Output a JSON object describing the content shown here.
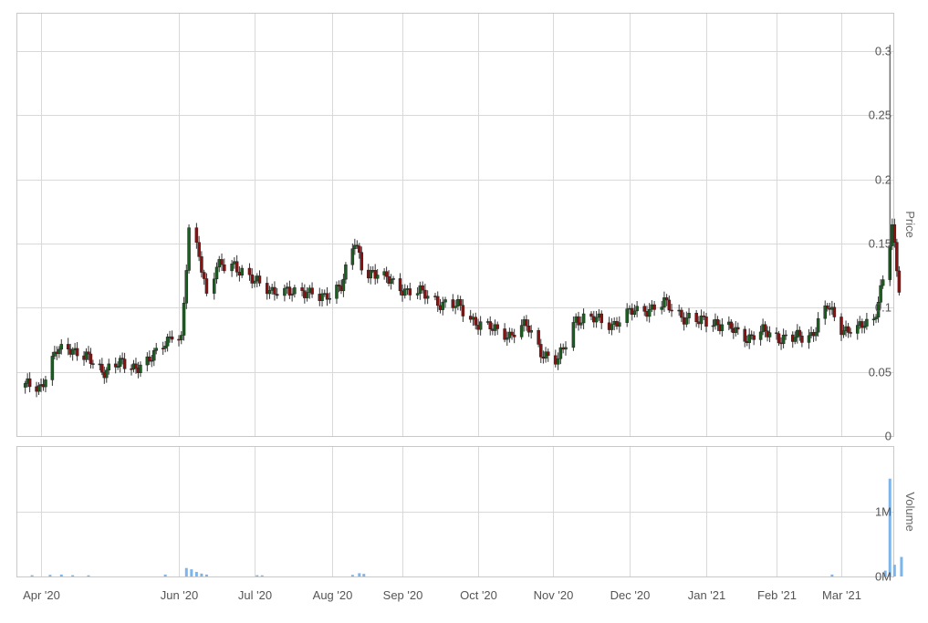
{
  "chart_data": [
    {
      "type": "candlestick",
      "ylabel": "Price",
      "ylim": [
        0,
        0.33
      ],
      "y_ticks": [
        "0",
        "0.05",
        "0.1",
        "0.15",
        "0.2",
        "0.25",
        "0.3"
      ],
      "y_tick_values": [
        0,
        0.05,
        0.1,
        0.15,
        0.2,
        0.25,
        0.3
      ],
      "x_ticks": [
        "Apr '20",
        "Jun '20",
        "Jul '20",
        "Aug '20",
        "Sep '20",
        "Oct '20",
        "Nov '20",
        "Dec '20",
        "Jan '21",
        "Feb '21",
        "Mar '21"
      ],
      "x_tick_dates": [
        "2020-04-01",
        "2020-06-01",
        "2020-07-01",
        "2020-08-01",
        "2020-09-01",
        "2020-10-01",
        "2020-11-01",
        "2020-12-01",
        "2021-01-01",
        "2021-02-01",
        "2021-03-01"
      ],
      "up_color": "#1a5e20",
      "down_color": "#8b1010",
      "grid": true,
      "candles": [
        {
          "date": "2020-03-25",
          "close": 0.038
        },
        {
          "date": "2020-04-01",
          "close": 0.04
        },
        {
          "date": "2020-04-08",
          "close": 0.065
        },
        {
          "date": "2020-04-14",
          "close": 0.07
        },
        {
          "date": "2020-04-21",
          "close": 0.06
        },
        {
          "date": "2020-04-28",
          "close": 0.052
        },
        {
          "date": "2020-05-05",
          "close": 0.055
        },
        {
          "date": "2020-05-12",
          "close": 0.055
        },
        {
          "date": "2020-05-19",
          "close": 0.057
        },
        {
          "date": "2020-05-26",
          "close": 0.075
        },
        {
          "date": "2020-05-29",
          "close": 0.08
        },
        {
          "date": "2020-06-02",
          "close": 0.072
        },
        {
          "date": "2020-06-05",
          "close": 0.16
        },
        {
          "date": "2020-06-09",
          "close": 0.145
        },
        {
          "date": "2020-06-12",
          "close": 0.11
        },
        {
          "date": "2020-06-16",
          "close": 0.13
        },
        {
          "date": "2020-06-23",
          "close": 0.135
        },
        {
          "date": "2020-06-30",
          "close": 0.12
        },
        {
          "date": "2020-07-08",
          "close": 0.115
        },
        {
          "date": "2020-07-15",
          "close": 0.11
        },
        {
          "date": "2020-07-22",
          "close": 0.115
        },
        {
          "date": "2020-07-29",
          "close": 0.105
        },
        {
          "date": "2020-08-05",
          "close": 0.12
        },
        {
          "date": "2020-08-11",
          "close": 0.15
        },
        {
          "date": "2020-08-15",
          "close": 0.125
        },
        {
          "date": "2020-08-19",
          "close": 0.13
        },
        {
          "date": "2020-08-26",
          "close": 0.12
        },
        {
          "date": "2020-09-02",
          "close": 0.115
        },
        {
          "date": "2020-09-09",
          "close": 0.11
        },
        {
          "date": "2020-09-16",
          "close": 0.105
        },
        {
          "date": "2020-09-23",
          "close": 0.1
        },
        {
          "date": "2020-09-30",
          "close": 0.09
        },
        {
          "date": "2020-10-07",
          "close": 0.082
        },
        {
          "date": "2020-10-14",
          "close": 0.08
        },
        {
          "date": "2020-10-21",
          "close": 0.085
        },
        {
          "date": "2020-10-28",
          "close": 0.065
        },
        {
          "date": "2020-11-03",
          "close": 0.057
        },
        {
          "date": "2020-11-10",
          "close": 0.093
        },
        {
          "date": "2020-11-17",
          "close": 0.09
        },
        {
          "date": "2020-11-24",
          "close": 0.088
        },
        {
          "date": "2020-12-01",
          "close": 0.095
        },
        {
          "date": "2020-12-08",
          "close": 0.1
        },
        {
          "date": "2020-12-15",
          "close": 0.102
        },
        {
          "date": "2020-12-22",
          "close": 0.095
        },
        {
          "date": "2020-12-29",
          "close": 0.088
        },
        {
          "date": "2021-01-05",
          "close": 0.09
        },
        {
          "date": "2021-01-12",
          "close": 0.082
        },
        {
          "date": "2021-01-19",
          "close": 0.078
        },
        {
          "date": "2021-01-26",
          "close": 0.08
        },
        {
          "date": "2021-02-02",
          "close": 0.078
        },
        {
          "date": "2021-02-09",
          "close": 0.075
        },
        {
          "date": "2021-02-16",
          "close": 0.08
        },
        {
          "date": "2021-02-23",
          "close": 0.1
        },
        {
          "date": "2021-03-01",
          "close": 0.085
        },
        {
          "date": "2021-03-08",
          "close": 0.082
        },
        {
          "date": "2021-03-15",
          "close": 0.092
        },
        {
          "date": "2021-03-20",
          "close": 0.13
        },
        {
          "date": "2021-03-23",
          "close": 0.16
        },
        {
          "date": "2021-03-26",
          "close": 0.115
        }
      ]
    },
    {
      "type": "bar",
      "ylabel": "Volume",
      "ylim": [
        0,
        2000000
      ],
      "y_ticks": [
        "0M",
        "1M"
      ],
      "y_tick_values": [
        0,
        1000000
      ],
      "bar_color": "#7cb5ec",
      "grid": true,
      "volumes": [
        {
          "date": "2020-03-28",
          "value": 20000
        },
        {
          "date": "2020-04-05",
          "value": 25000
        },
        {
          "date": "2020-04-10",
          "value": 30000
        },
        {
          "date": "2020-04-15",
          "value": 20000
        },
        {
          "date": "2020-04-22",
          "value": 18000
        },
        {
          "date": "2020-05-26",
          "value": 30000
        },
        {
          "date": "2020-06-04",
          "value": 130000
        },
        {
          "date": "2020-06-06",
          "value": 110000
        },
        {
          "date": "2020-06-08",
          "value": 70000
        },
        {
          "date": "2020-06-10",
          "value": 45000
        },
        {
          "date": "2020-06-12",
          "value": 30000
        },
        {
          "date": "2020-07-02",
          "value": 20000
        },
        {
          "date": "2020-07-04",
          "value": 18000
        },
        {
          "date": "2020-08-10",
          "value": 25000
        },
        {
          "date": "2020-08-13",
          "value": 50000
        },
        {
          "date": "2020-08-15",
          "value": 40000
        },
        {
          "date": "2021-02-25",
          "value": 30000
        },
        {
          "date": "2021-03-20",
          "value": 90000
        },
        {
          "date": "2021-03-22",
          "value": 1500000
        },
        {
          "date": "2021-03-24",
          "value": 180000
        },
        {
          "date": "2021-03-27",
          "value": 300000
        }
      ]
    }
  ]
}
